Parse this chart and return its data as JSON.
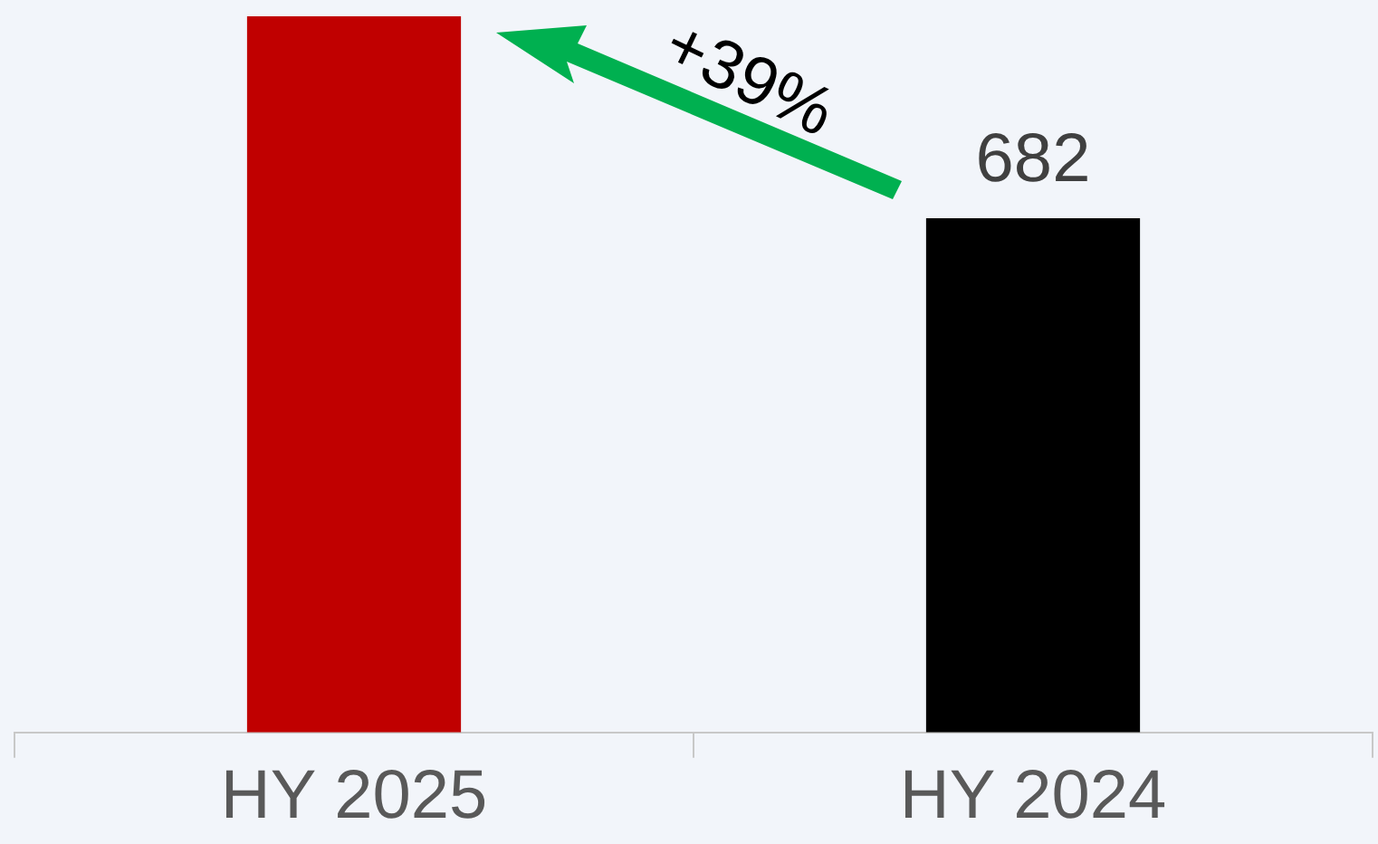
{
  "chart_data": {
    "type": "bar",
    "categories": [
      "HY 2025",
      "HY 2024"
    ],
    "values": [
      950,
      682
    ],
    "colors": [
      "#c00000",
      "#000000"
    ],
    "value_labels": [
      null,
      "682"
    ],
    "annotations": [
      "+39%"
    ]
  }
}
